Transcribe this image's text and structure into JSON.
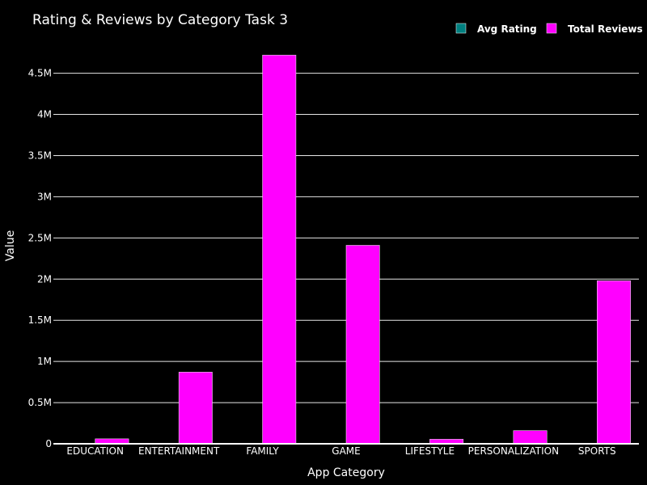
{
  "chart_data": {
    "type": "bar",
    "title": "Rating & Reviews by Category Task 3",
    "xlabel": "App Category",
    "ylabel": "Value",
    "categories": [
      "EDUCATION",
      "ENTERTAINMENT",
      "FAMILY",
      "GAME",
      "LIFESTYLE",
      "PERSONALIZATION",
      "SPORTS"
    ],
    "series": [
      {
        "name": "Avg Rating",
        "color": "#008080",
        "values": [
          4.4,
          4.2,
          4.3,
          4.3,
          4.1,
          4.3,
          4.2
        ]
      },
      {
        "name": "Total Reviews",
        "color": "#ff00ff",
        "values": [
          60000,
          870000,
          4720000,
          2410000,
          55000,
          160000,
          1980000
        ]
      }
    ],
    "ylim": [
      0,
      4800000
    ],
    "yticks": [
      0,
      500000,
      1000000,
      1500000,
      2000000,
      2500000,
      3000000,
      3500000,
      4000000,
      4500000
    ],
    "ytick_labels": [
      "0",
      "0.5M",
      "1M",
      "1.5M",
      "2M",
      "2.5M",
      "3M",
      "3.5M",
      "4M",
      "4.5M"
    ],
    "grid": true,
    "legend_position": "top-right",
    "background": "#000000"
  }
}
